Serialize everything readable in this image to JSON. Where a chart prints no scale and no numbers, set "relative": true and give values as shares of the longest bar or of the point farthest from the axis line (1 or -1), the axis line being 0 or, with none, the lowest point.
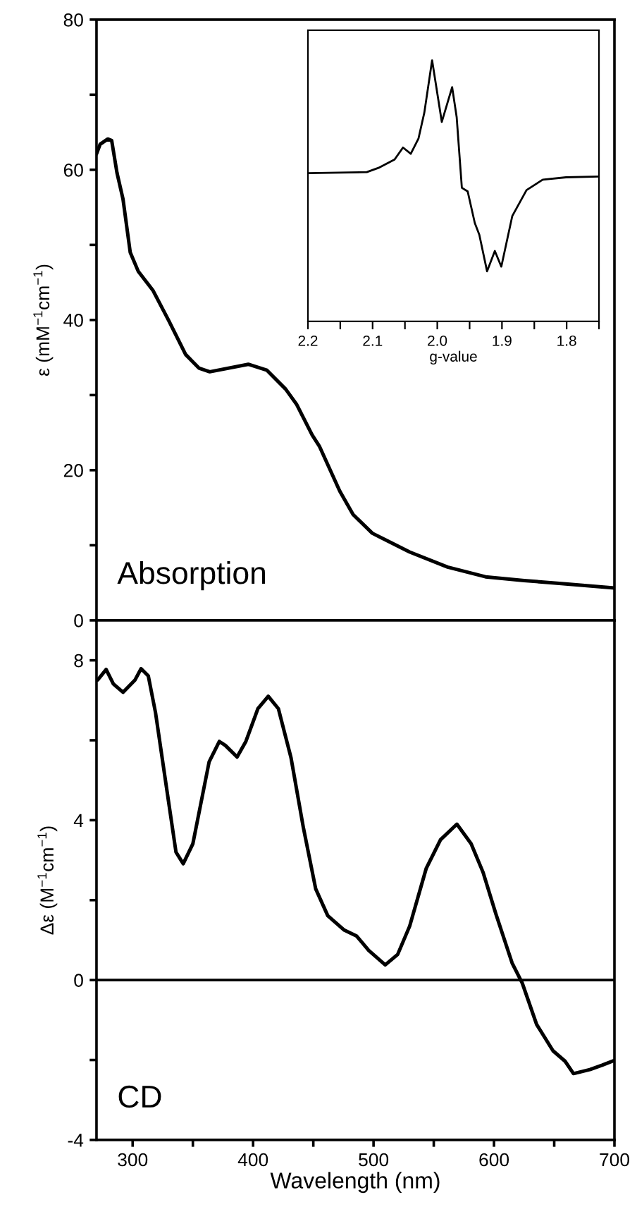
{
  "chart_data": [
    {
      "type": "line",
      "ylabel": "ε (mM$^{−1}$cm$^{−1}$)",
      "annotations": [
        "Absorption"
      ],
      "xlim": [
        270,
        700
      ],
      "ylim": [
        0,
        80
      ],
      "tick_labels": "y",
      "yticks": [
        0,
        {
          "value": 10,
          "label": null
        },
        20,
        {
          "value": 30,
          "label": null
        },
        40,
        {
          "value": 50,
          "label": null
        },
        60,
        {
          "value": 70,
          "label": null
        },
        80
      ],
      "series": [
        {
          "color": "#000000",
          "x": [
            270,
            273,
            279.4,
            282.6,
            287,
            292,
            298,
            304.6,
            317,
            330,
            344,
            355,
            364,
            396,
            411.5,
            427,
            436,
            449,
            455,
            472,
            483,
            499,
            530,
            561.5,
            593,
            625,
            656,
            700
          ],
          "values": [
            62.1,
            63.4,
            64.1,
            63.9,
            59.6,
            56.1,
            49.0,
            46.5,
            43.9,
            39.9,
            35.4,
            33.6,
            33.1,
            34.1,
            33.3,
            30.8,
            28.8,
            24.7,
            23.2,
            17.2,
            14.1,
            11.6,
            9.1,
            7.1,
            5.8,
            5.3,
            4.9,
            4.3
          ]
        }
      ]
    },
    {
      "type": "line",
      "xlabel": "Wavelength (nm)",
      "ylabel": "Δε (M$^{−1}$cm$^{−1}$)",
      "annotations": [
        "CD"
      ],
      "xlim": [
        270,
        700
      ],
      "ylim": [
        -4,
        9
      ],
      "xticks": [
        300,
        {
          "value": 350,
          "label": null
        },
        400,
        {
          "value": 450,
          "label": null
        },
        500,
        {
          "value": 550,
          "label": null
        },
        600,
        {
          "value": 650,
          "label": null
        },
        700
      ],
      "yticks": [
        -4,
        {
          "value": -2,
          "label": null
        },
        0,
        {
          "value": 2,
          "label": null
        },
        4,
        {
          "value": 6,
          "label": null
        },
        8
      ],
      "ref_lines": [
        {
          "axis": "y",
          "value": 0,
          "color": "#000000"
        }
      ],
      "series": [
        {
          "color": "#000000",
          "x": [
            271,
            278,
            284,
            292,
            302,
            307,
            313,
            319,
            330,
            336,
            342,
            350,
            363.5,
            372,
            377,
            386.7,
            394,
            404,
            412.6,
            421,
            431.5,
            441.7,
            452,
            462,
            475.7,
            486,
            496,
            509.7,
            520,
            530,
            543.7,
            555.6,
            569.2,
            581,
            591,
            601.5,
            615,
            623.5,
            635.4,
            649,
            659,
            666,
            679.6,
            689.8,
            700
          ],
          "values": [
            7.51,
            7.77,
            7.41,
            7.2,
            7.51,
            7.79,
            7.61,
            6.69,
            4.43,
            3.2,
            2.91,
            3.41,
            5.46,
            5.97,
            5.87,
            5.58,
            5.97,
            6.79,
            7.1,
            6.79,
            5.56,
            3.82,
            2.28,
            1.61,
            1.25,
            1.1,
            0.74,
            0.38,
            0.64,
            1.35,
            2.79,
            3.51,
            3.9,
            3.41,
            2.69,
            1.66,
            0.43,
            -0.08,
            -1.11,
            -1.77,
            -2.03,
            -2.34,
            -2.24,
            -2.13,
            -2.01
          ]
        }
      ]
    },
    {
      "type": "line",
      "xlabel": "g-value",
      "relative": true,
      "tick_labels": "x",
      "xlim": [
        2.2,
        1.75
      ],
      "xticks": [
        2.2,
        {
          "value": 2.15,
          "label": null
        },
        2.1,
        {
          "value": 2.05,
          "label": null
        },
        {
          "value": 2,
          "label": "2.0"
        },
        {
          "value": 1.95,
          "label": null
        },
        1.9,
        {
          "value": 1.85,
          "label": null
        },
        1.8,
        {
          "value": 1.75,
          "label": null
        }
      ],
      "series": [
        {
          "color": "#000000",
          "x": [
            2.2,
            2.109,
            2.091,
            2.066,
            2.053,
            2.041,
            2.029,
            2.02,
            2.008,
            1.993,
            1.977,
            1.97,
            1.962,
            1.953,
            1.942,
            1.935,
            1.923,
            1.911,
            1.901,
            1.884,
            1.862,
            1.837,
            1.801,
            1.75
          ],
          "values": [
            0.568,
            0.572,
            0.588,
            0.62,
            0.666,
            0.642,
            0.701,
            0.8,
            1.0,
            0.764,
            0.897,
            0.782,
            0.512,
            0.498,
            0.377,
            0.332,
            0.192,
            0.27,
            0.21,
            0.404,
            0.503,
            0.543,
            0.552,
            0.555
          ]
        }
      ]
    }
  ]
}
